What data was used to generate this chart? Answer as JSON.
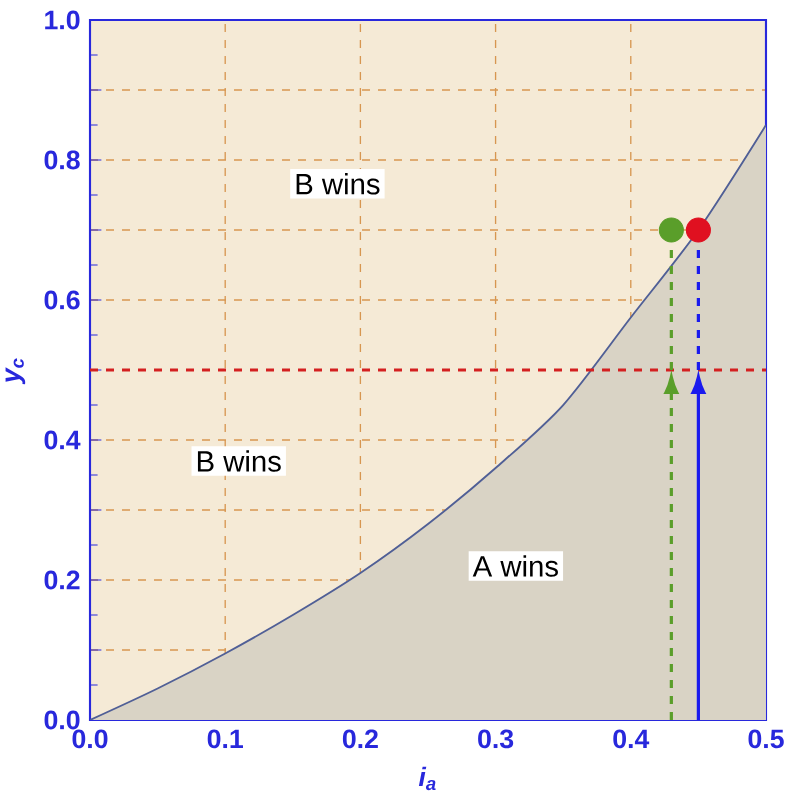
{
  "chart_data": {
    "type": "area",
    "xlabel": "i$_{a}$",
    "ylabel": "y$_{c}$",
    "xlim": [
      0,
      0.5
    ],
    "ylim": [
      0,
      1
    ],
    "xticks": [
      {
        "value": 0,
        "label": "0.0"
      },
      0.1,
      0.2,
      0.3,
      0.4,
      0.5
    ],
    "yticks": [
      {
        "value": 0,
        "label": "0.0"
      },
      {
        "value": 0.1,
        "label": null
      },
      0.2,
      {
        "value": 0.3,
        "label": null
      },
      0.4,
      {
        "value": 0.5,
        "label": null
      },
      0.6,
      {
        "value": 0.7,
        "label": null
      },
      0.8,
      {
        "value": 0.9,
        "label": null
      },
      {
        "value": 1,
        "label": "1.0"
      }
    ],
    "grid": true,
    "series": [
      {
        "type": "area",
        "color": "#d9d3c5",
        "x": [
          0,
          0.05,
          0.1,
          0.15,
          0.2,
          0.25,
          0.3,
          0.35,
          0.4,
          0.45,
          0.5
        ],
        "values": [
          0,
          0.045,
          0.095,
          0.15,
          0.21,
          0.28,
          0.36,
          0.45,
          0.575,
          0.7,
          0.85
        ]
      },
      {
        "type": "line",
        "color": "#5a9e2a",
        "line_style": "dashed",
        "x": [
          0.43,
          0.43
        ],
        "values": [
          0.5,
          0.7
        ]
      },
      {
        "type": "line",
        "color": "#1a1aee",
        "line_style": "dashed",
        "x": [
          0.45,
          0.45
        ],
        "values": [
          0.5,
          0.7
        ]
      },
      {
        "type": "scatter",
        "color": "#5a9e2a",
        "marker": "circle",
        "x": [
          0.43
        ],
        "values": [
          0.7
        ]
      },
      {
        "type": "scatter",
        "color": "#e01020",
        "marker": "circle",
        "x": [
          0.45
        ],
        "values": [
          0.7
        ]
      }
    ],
    "ref_lines": [
      {
        "axis": "y",
        "value": 0.5,
        "color": "#d42020",
        "line_style": "dashed"
      }
    ],
    "annotations": [
      "B wins",
      "B wins",
      "A wins"
    ]
  }
}
